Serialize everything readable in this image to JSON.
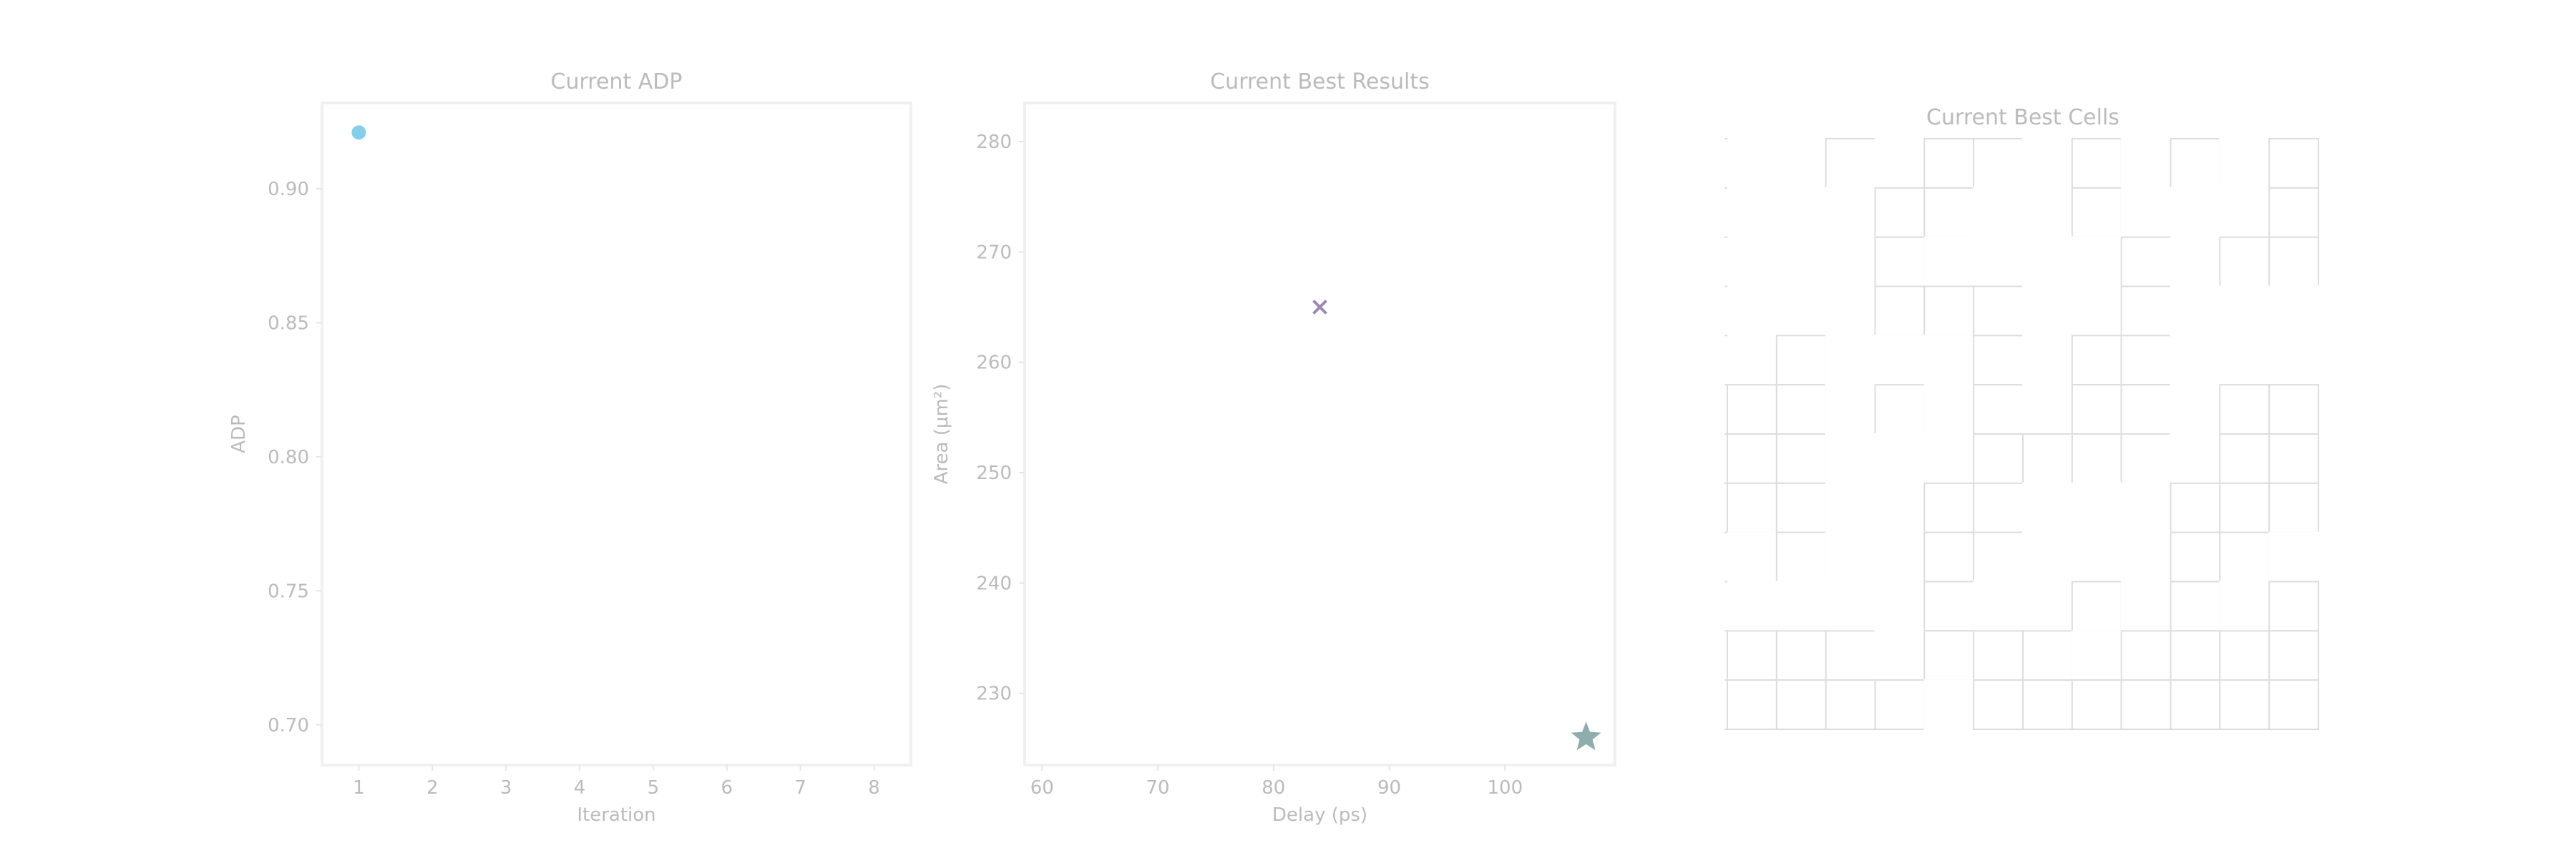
{
  "chart_data": [
    {
      "type": "scatter",
      "title": "Current ADP",
      "xlabel": "Iteration",
      "ylabel": "ADP",
      "xlim": [
        0.5,
        8.5
      ],
      "ylim": [
        0.685,
        0.932
      ],
      "xticks": [
        1,
        2,
        3,
        4,
        5,
        6,
        7,
        8
      ],
      "yticks": [
        0.7,
        0.75,
        0.8,
        0.85,
        0.9
      ],
      "points": [
        {
          "x": 1,
          "y": 0.921,
          "marker": "circle",
          "color": "#87CEEB"
        }
      ],
      "grid": false
    },
    {
      "type": "scatter",
      "title": "Current Best Results",
      "xlabel": "Delay (ps)",
      "ylabel": "Area (μm²)",
      "xlim": [
        58.5,
        109.5
      ],
      "ylim": [
        223.5,
        283.5
      ],
      "xticks": [
        60,
        70,
        80,
        90,
        100
      ],
      "yticks": [
        230,
        240,
        250,
        260,
        270,
        280
      ],
      "points": [
        {
          "x": 84,
          "y": 265,
          "marker": "x",
          "color": "#9b89b3"
        },
        {
          "x": 107,
          "y": 226,
          "marker": "star",
          "color": "#8fadad"
        }
      ],
      "grid": false
    },
    {
      "type": "heatmap",
      "title": "Current Best Cells",
      "rows": 12,
      "cols": 12,
      "cells": [
        [
          0,
          0,
          1,
          0,
          1,
          1,
          0,
          1,
          0,
          1,
          0,
          1
        ],
        [
          0,
          0,
          0,
          1,
          1,
          0,
          0,
          1,
          0,
          0,
          0,
          1
        ],
        [
          0,
          0,
          0,
          1,
          0,
          0,
          0,
          0,
          1,
          0,
          1,
          1
        ],
        [
          0,
          0,
          0,
          1,
          1,
          1,
          0,
          0,
          1,
          0,
          0,
          0
        ],
        [
          0,
          1,
          0,
          0,
          0,
          1,
          0,
          1,
          1,
          0,
          0,
          0
        ],
        [
          1,
          1,
          0,
          1,
          0,
          1,
          0,
          1,
          1,
          0,
          1,
          1
        ],
        [
          1,
          1,
          0,
          0,
          0,
          1,
          1,
          1,
          1,
          0,
          1,
          1
        ],
        [
          1,
          1,
          0,
          0,
          1,
          1,
          0,
          0,
          0,
          1,
          1,
          1
        ],
        [
          0,
          1,
          0,
          0,
          1,
          1,
          0,
          0,
          0,
          1,
          1,
          0
        ],
        [
          0,
          0,
          0,
          0,
          1,
          0,
          0,
          1,
          0,
          1,
          0,
          1
        ],
        [
          1,
          1,
          1,
          0,
          1,
          1,
          1,
          0,
          1,
          1,
          1,
          1
        ],
        [
          1,
          1,
          1,
          1,
          0,
          1,
          1,
          1,
          1,
          1,
          1,
          1
        ]
      ],
      "grid_color": "#dddddd"
    }
  ]
}
